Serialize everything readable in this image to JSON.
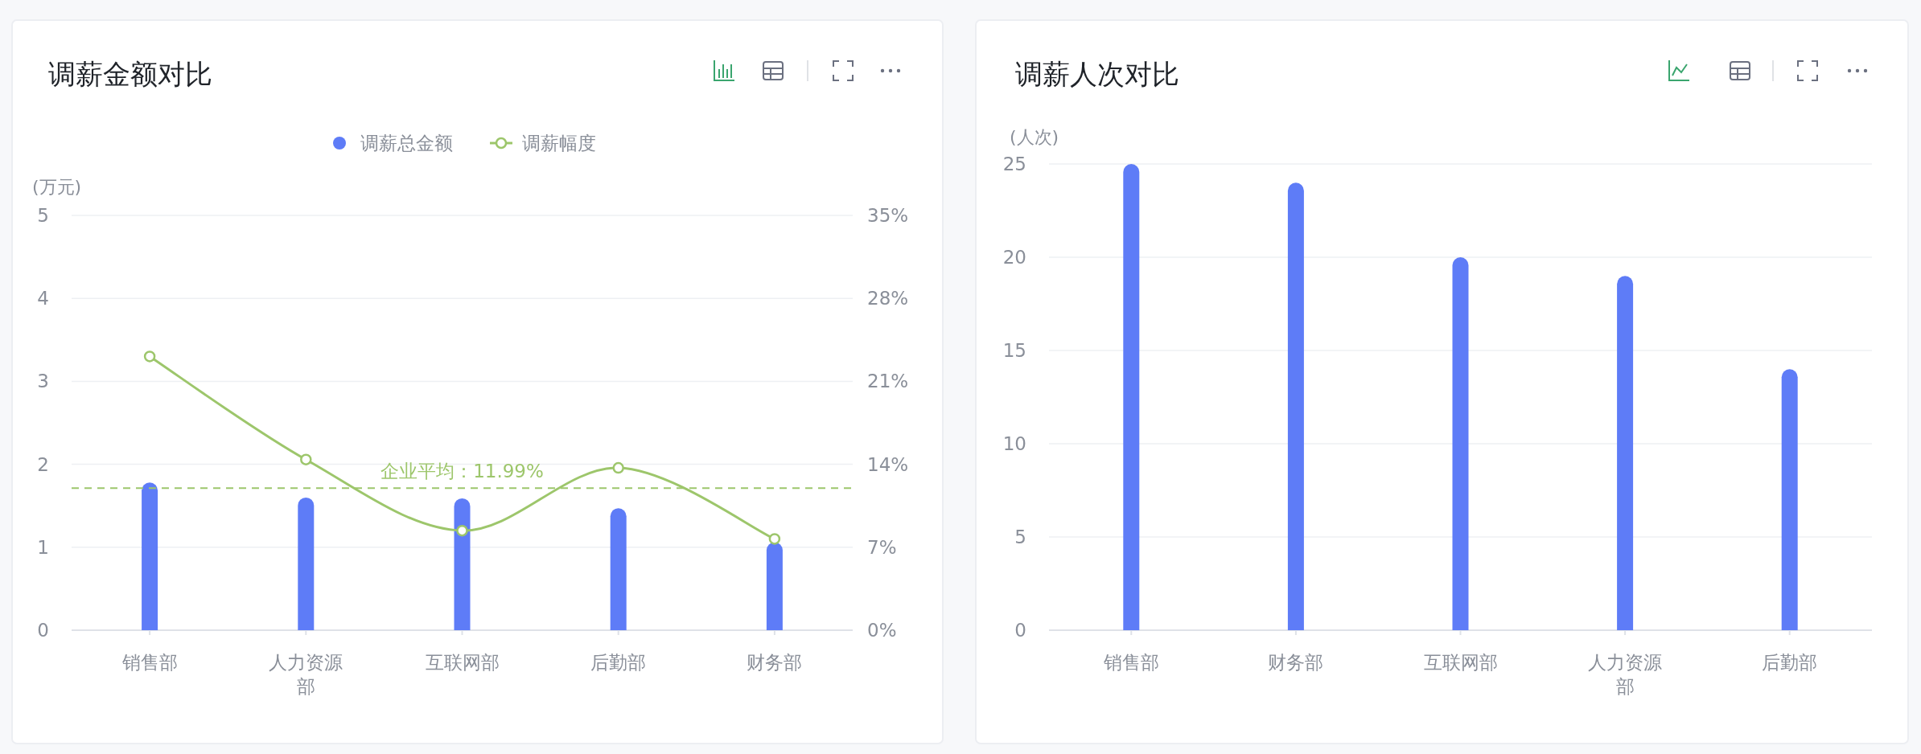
{
  "chart_data": [
    {
      "type": "bar",
      "title": "调薪金额对比",
      "ylabel": "(万元)",
      "categories": [
        "销售部",
        "人力资源部",
        "互联网部",
        "后勤部",
        "财务部"
      ],
      "series": [
        {
          "name": "调薪总金额",
          "color": "#5e7cf7",
          "values": [
            1.78,
            1.6,
            1.59,
            1.47,
            1.06
          ]
        },
        {
          "name": "调薪幅度",
          "type": "line",
          "axis": "y2",
          "color": "#9dc66b",
          "values": [
            23.1,
            14.4,
            8.4,
            13.7,
            7.7
          ]
        }
      ],
      "ylim": [
        0,
        5
      ],
      "yticks": [
        0,
        1,
        2,
        3,
        4,
        5
      ],
      "y2lim": [
        0,
        35
      ],
      "y2ticks": [
        {
          "value": 0,
          "label": "0%"
        },
        {
          "value": 7,
          "label": "7%"
        },
        {
          "value": 14,
          "label": "14%"
        },
        {
          "value": 21,
          "label": "21%"
        },
        {
          "value": 28,
          "label": "28%"
        },
        {
          "value": 35,
          "label": "35%"
        }
      ],
      "ref_lines": [
        {
          "axis": "y2",
          "value": 11.99,
          "label": "企业平均：11.99%",
          "color": "#9dc66b",
          "line_style": "dashed"
        }
      ],
      "marker": "circle",
      "grid": "y",
      "legend": "top"
    },
    {
      "type": "bar",
      "title": "调薪人次对比",
      "ylabel": "(人次)",
      "categories": [
        "销售部",
        "财务部",
        "互联网部",
        "人力资源部",
        "后勤部"
      ],
      "series": [
        {
          "color": "#5e7cf7",
          "values": [
            25,
            24,
            20,
            19,
            14
          ]
        }
      ],
      "ylim": [
        0,
        25
      ],
      "yticks": [
        0,
        5,
        10,
        15,
        20,
        25
      ],
      "grid": "y"
    }
  ]
}
